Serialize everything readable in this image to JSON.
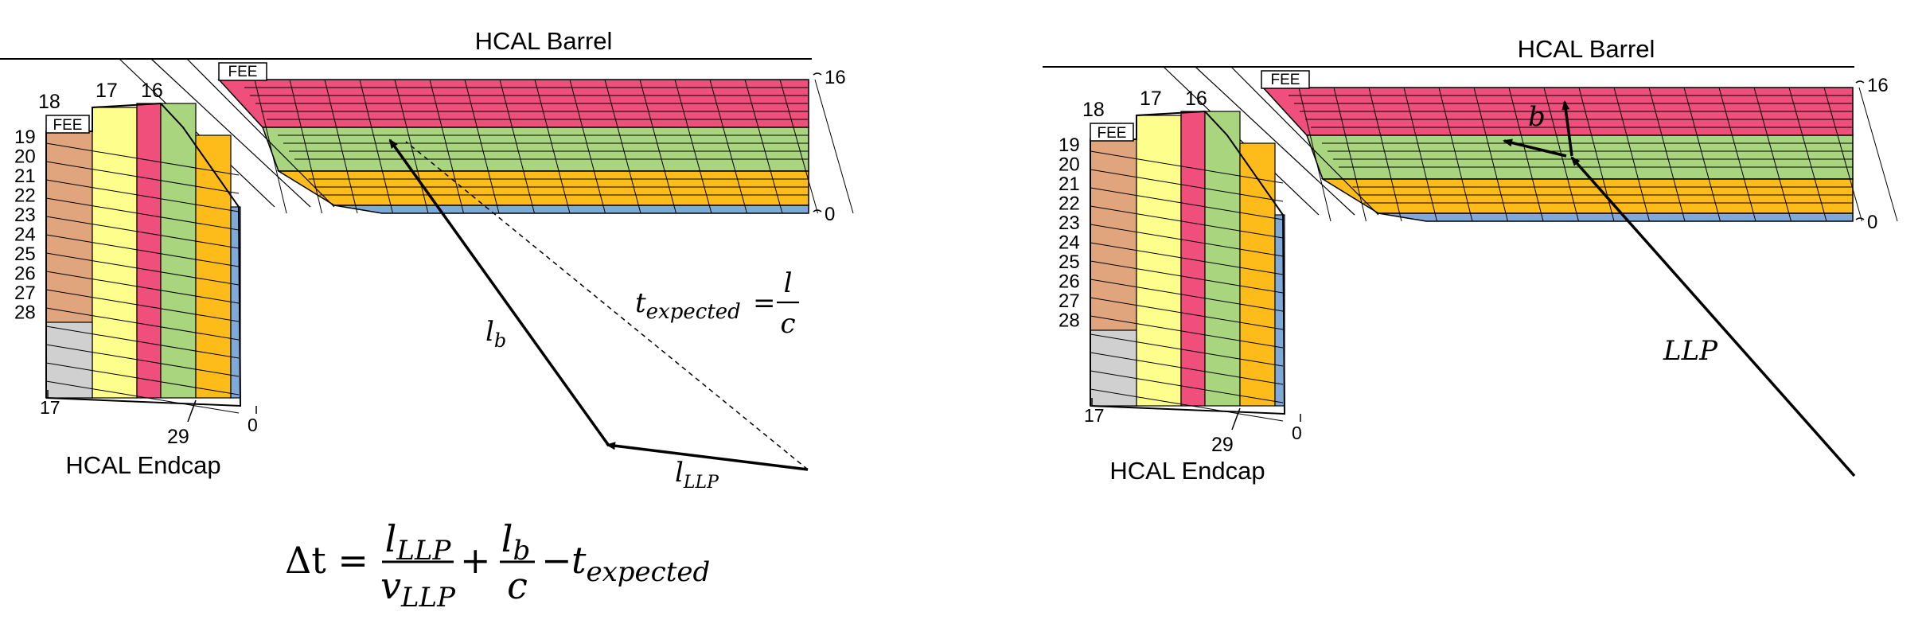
{
  "colors": {
    "red": "#ef4f7a",
    "green": "#a9d57e",
    "yellow": "#fefe8c",
    "orange": "#fdbc1a",
    "tan": "#e0a57d",
    "grey": "#d0d0d0",
    "blue": "#7ea9d8",
    "line": "#000000"
  },
  "left_panel": {
    "barrel_title": "HCAL Barrel",
    "endcap_title": "HCAL Endcap",
    "fee_label": "FEE",
    "depth_top": "16",
    "depth_bottom": "0",
    "endcap_top_labels": [
      "18",
      "17",
      "16"
    ],
    "ieta_labels": [
      "19",
      "20",
      "21",
      "22",
      "23",
      "24",
      "25",
      "26",
      "27",
      "28"
    ],
    "bottom_labels": [
      "17",
      "29",
      "0"
    ],
    "path_label_lb": "l",
    "path_label_lb_sub": "b",
    "path_label_llp": "l",
    "path_label_llp_sub": "LLP",
    "texp": "t",
    "texp_sub": "expected",
    "texp_eq": "=",
    "texp_num": "l",
    "texp_den": "c",
    "formula": {
      "delta": "Δt =",
      "frac1_num": "l",
      "frac1_num_sub": "LLP",
      "frac1_den": "v",
      "frac1_den_sub": "LLP",
      "plus": "+",
      "frac2_num": "l",
      "frac2_num_sub": "b",
      "frac2_den": "c",
      "minus": "−",
      "t": "t",
      "t_sub": "expected"
    }
  },
  "right_panel": {
    "barrel_title": "HCAL Barrel",
    "endcap_title": "HCAL Endcap",
    "fee_label": "FEE",
    "depth_top": "16",
    "depth_bottom": "0",
    "endcap_top_labels": [
      "18",
      "17",
      "16"
    ],
    "ieta_labels": [
      "19",
      "20",
      "21",
      "22",
      "23",
      "24",
      "25",
      "26",
      "27",
      "28"
    ],
    "bottom_labels": [
      "17",
      "29",
      "0"
    ],
    "b_label": "b",
    "llp_label": "LLP"
  }
}
